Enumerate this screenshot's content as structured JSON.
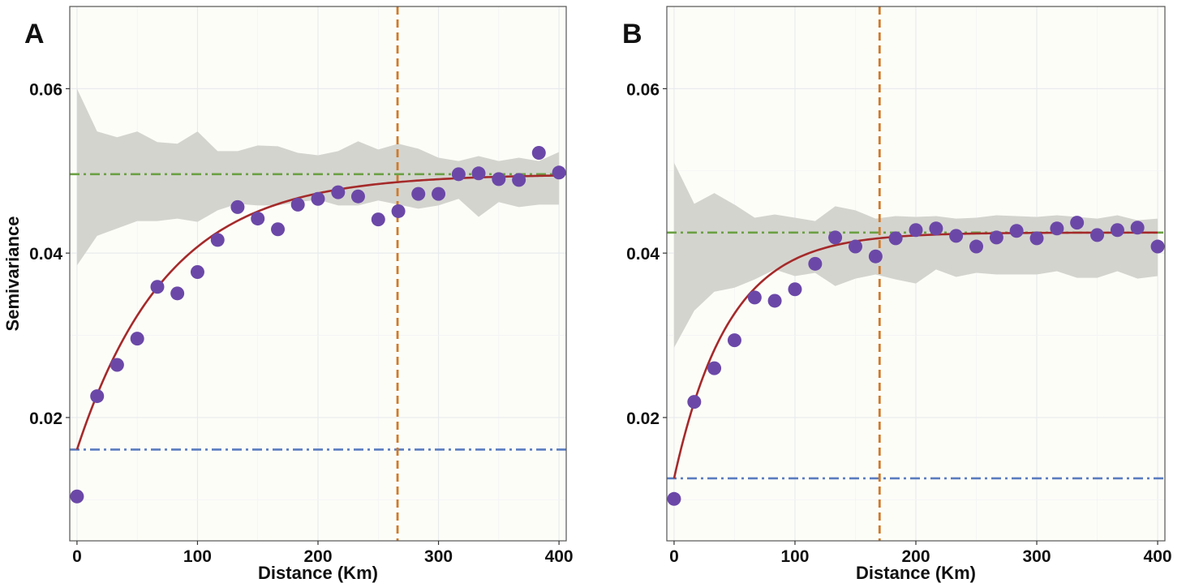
{
  "chart_data": [
    {
      "type": "scatter",
      "panel_label": "A",
      "xlabel": "Distance (Km)",
      "ylabel": "Semivariance",
      "xlim": [
        -6,
        406
      ],
      "ylim": [
        0.005,
        0.07
      ],
      "x_ticks": [
        "0",
        "100",
        "200",
        "300",
        "400"
      ],
      "y_ticks": [
        "0.02",
        "0.04",
        "0.06"
      ],
      "grid": true,
      "colors": {
        "points": "#6b48a8",
        "fit": "#a52a2a",
        "sill": "#6ba044",
        "nugget": "#5a7cbf",
        "range": "#d07a2a",
        "envelope": "#d4d4cf",
        "panel_bg": "#fdfdf8"
      },
      "points": {
        "x": [
          0,
          16.7,
          33.3,
          50,
          66.7,
          83.3,
          100,
          116.7,
          133.3,
          150,
          166.7,
          183.3,
          200,
          216.7,
          233.3,
          250,
          266.7,
          283.3,
          300,
          316.7,
          333.3,
          350,
          366.7,
          383.3,
          400
        ],
        "y": [
          0.0104,
          0.0226,
          0.0264,
          0.0296,
          0.0359,
          0.0351,
          0.0377,
          0.0416,
          0.0456,
          0.0442,
          0.0429,
          0.0459,
          0.0466,
          0.0474,
          0.0469,
          0.0441,
          0.0451,
          0.0472,
          0.0472,
          0.0496,
          0.0497,
          0.049,
          0.0489,
          0.0522,
          0.0498
        ]
      },
      "fit": {
        "model": "exponential",
        "nugget": 0.0161,
        "sill": 0.0496,
        "range_param": 75
      },
      "envelope": {
        "x": [
          0,
          16.7,
          33.3,
          50,
          66.7,
          83.3,
          100,
          116.7,
          133.3,
          150,
          166.7,
          183.3,
          200,
          216.7,
          233.3,
          250,
          266.7,
          283.3,
          300,
          316.7,
          333.3,
          350,
          366.7,
          383.3,
          400
        ],
        "upper": [
          0.06,
          0.0548,
          0.0541,
          0.0548,
          0.0535,
          0.0533,
          0.0548,
          0.0524,
          0.0524,
          0.0531,
          0.053,
          0.0522,
          0.0519,
          0.0524,
          0.0536,
          0.0526,
          0.0533,
          0.0527,
          0.0516,
          0.0512,
          0.0518,
          0.0512,
          0.0516,
          0.0512,
          0.0523
        ],
        "lower": [
          0.0385,
          0.0421,
          0.043,
          0.0439,
          0.0439,
          0.0442,
          0.0438,
          0.0452,
          0.046,
          0.0458,
          0.0458,
          0.0462,
          0.0465,
          0.0458,
          0.0458,
          0.0464,
          0.0459,
          0.0454,
          0.0458,
          0.0466,
          0.0444,
          0.0462,
          0.0456,
          0.0459,
          0.0459
        ]
      },
      "reference_lines": {
        "sill": 0.0496,
        "nugget": 0.0161,
        "range": 266
      }
    },
    {
      "type": "scatter",
      "panel_label": "B",
      "xlabel": "Distance (Km)",
      "ylabel": "",
      "xlim": [
        -6,
        406
      ],
      "ylim": [
        0.005,
        0.07
      ],
      "x_ticks": [
        "0",
        "100",
        "200",
        "300",
        "400"
      ],
      "y_ticks": [
        "0.02",
        "0.04",
        "0.06"
      ],
      "grid": true,
      "colors": {
        "points": "#6b48a8",
        "fit": "#a52a2a",
        "sill": "#6ba044",
        "nugget": "#5a7cbf",
        "range": "#d07a2a",
        "envelope": "#d4d4cf",
        "panel_bg": "#fdfdf8"
      },
      "points": {
        "x": [
          0,
          16.7,
          33.3,
          50,
          66.7,
          83.3,
          100,
          116.7,
          133.3,
          150,
          166.7,
          183.3,
          200,
          216.7,
          233.3,
          250,
          266.7,
          283.3,
          300,
          316.7,
          333.3,
          350,
          366.7,
          383.3,
          400
        ],
        "y": [
          0.0101,
          0.0219,
          0.026,
          0.0294,
          0.0346,
          0.0342,
          0.0356,
          0.0387,
          0.0419,
          0.0408,
          0.0396,
          0.0418,
          0.0428,
          0.043,
          0.0421,
          0.0408,
          0.0419,
          0.0427,
          0.0418,
          0.043,
          0.0437,
          0.0422,
          0.0428,
          0.0431,
          0.0408
        ]
      },
      "fit": {
        "model": "exponential",
        "nugget": 0.0126,
        "sill": 0.0425,
        "range_param": 45
      },
      "envelope": {
        "x": [
          0,
          16.7,
          33.3,
          50,
          66.7,
          83.3,
          100,
          116.7,
          133.3,
          150,
          166.7,
          183.3,
          200,
          216.7,
          233.3,
          250,
          266.7,
          283.3,
          300,
          316.7,
          333.3,
          350,
          366.7,
          383.3,
          400
        ],
        "upper": [
          0.051,
          0.046,
          0.0473,
          0.0459,
          0.0443,
          0.0447,
          0.0443,
          0.0439,
          0.0457,
          0.0452,
          0.0442,
          0.0445,
          0.0444,
          0.0445,
          0.0442,
          0.0443,
          0.0446,
          0.0445,
          0.0444,
          0.0446,
          0.0444,
          0.0442,
          0.0446,
          0.044,
          0.0442
        ],
        "lower": [
          0.0285,
          0.033,
          0.0353,
          0.0358,
          0.0368,
          0.038,
          0.0372,
          0.0376,
          0.036,
          0.0369,
          0.0374,
          0.0368,
          0.0363,
          0.038,
          0.0371,
          0.0376,
          0.0374,
          0.0374,
          0.0374,
          0.0378,
          0.037,
          0.037,
          0.0378,
          0.0369,
          0.0372
        ]
      },
      "reference_lines": {
        "sill": 0.0425,
        "nugget": 0.0126,
        "range": 170
      }
    }
  ]
}
